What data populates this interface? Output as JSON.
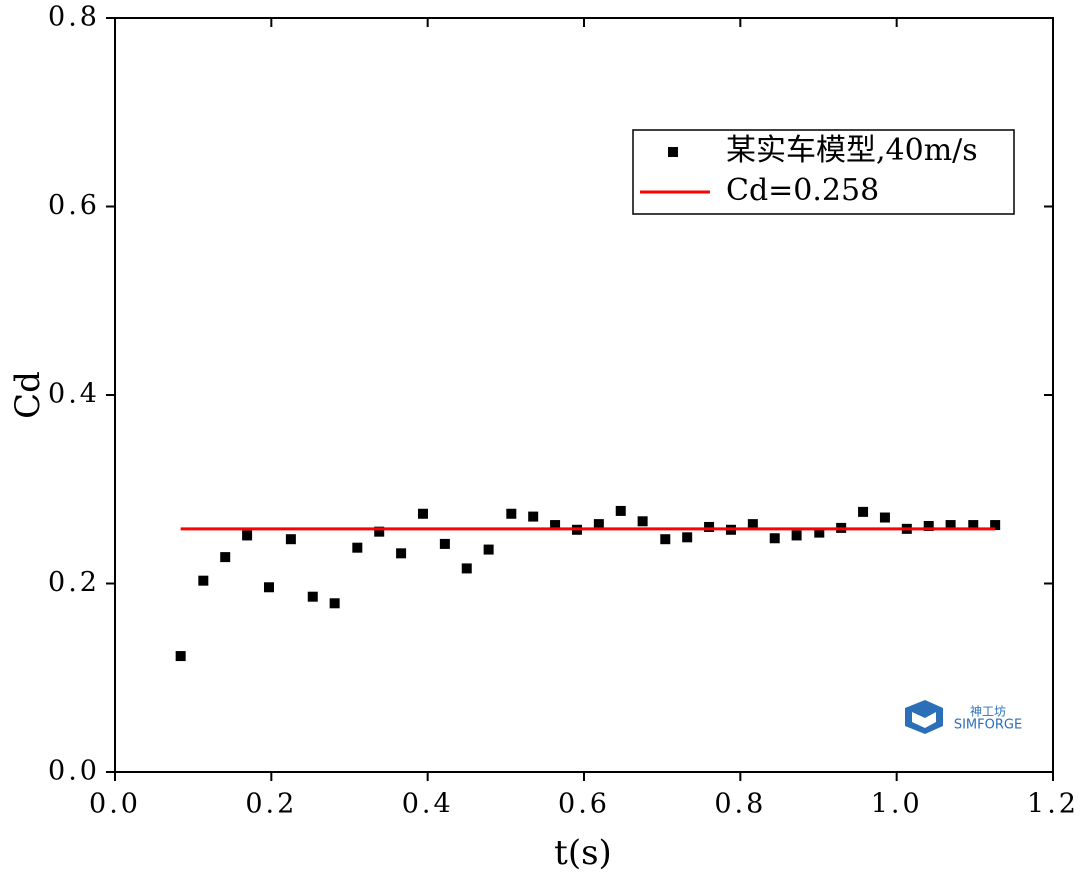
{
  "chart_data": {
    "type": "scatter",
    "x_label": "t(s)",
    "y_label": "Cd",
    "xlim": [
      0,
      1.2
    ],
    "ylim": [
      0,
      0.8
    ],
    "xticks": [
      {
        "value": 0,
        "label": "0.0"
      },
      0.2,
      0.4,
      0.6,
      0.8,
      {
        "value": 1,
        "label": "1.0"
      },
      1.2
    ],
    "yticks": [
      {
        "value": 0,
        "label": "0.0"
      },
      0.2,
      0.4,
      0.6,
      0.8
    ],
    "legend_position": "upper right",
    "series": [
      {
        "name": "某实车模型,40m/s",
        "color": "#000000",
        "kind": "scatter",
        "x": [
          0.084,
          0.113,
          0.141,
          0.169,
          0.197,
          0.225,
          0.253,
          0.281,
          0.31,
          0.338,
          0.366,
          0.394,
          0.422,
          0.45,
          0.478,
          0.507,
          0.535,
          0.563,
          0.591,
          0.619,
          0.647,
          0.675,
          0.704,
          0.732,
          0.76,
          0.788,
          0.816,
          0.844,
          0.872,
          0.901,
          0.929,
          0.957,
          0.985,
          1.013,
          1.041,
          1.069,
          1.098,
          1.126
        ],
        "values": [
          0.123,
          0.203,
          0.228,
          0.251,
          0.196,
          0.247,
          0.186,
          0.179,
          0.238,
          0.255,
          0.232,
          0.274,
          0.242,
          0.216,
          0.236,
          0.274,
          0.271,
          0.262,
          0.257,
          0.263,
          0.277,
          0.266,
          0.247,
          0.249,
          0.26,
          0.257,
          0.263,
          0.248,
          0.251,
          0.254,
          0.259,
          0.276,
          0.27,
          0.258,
          0.261,
          0.262,
          0.262,
          0.262
        ]
      },
      {
        "name": "Cd=0.258",
        "color": "#ff0000",
        "kind": "line",
        "x": [
          0.084,
          1.126
        ],
        "values": [
          0.258,
          0.258
        ]
      }
    ],
    "watermark": {
      "name": "神工坊",
      "brand": "SIMFORGE"
    }
  }
}
